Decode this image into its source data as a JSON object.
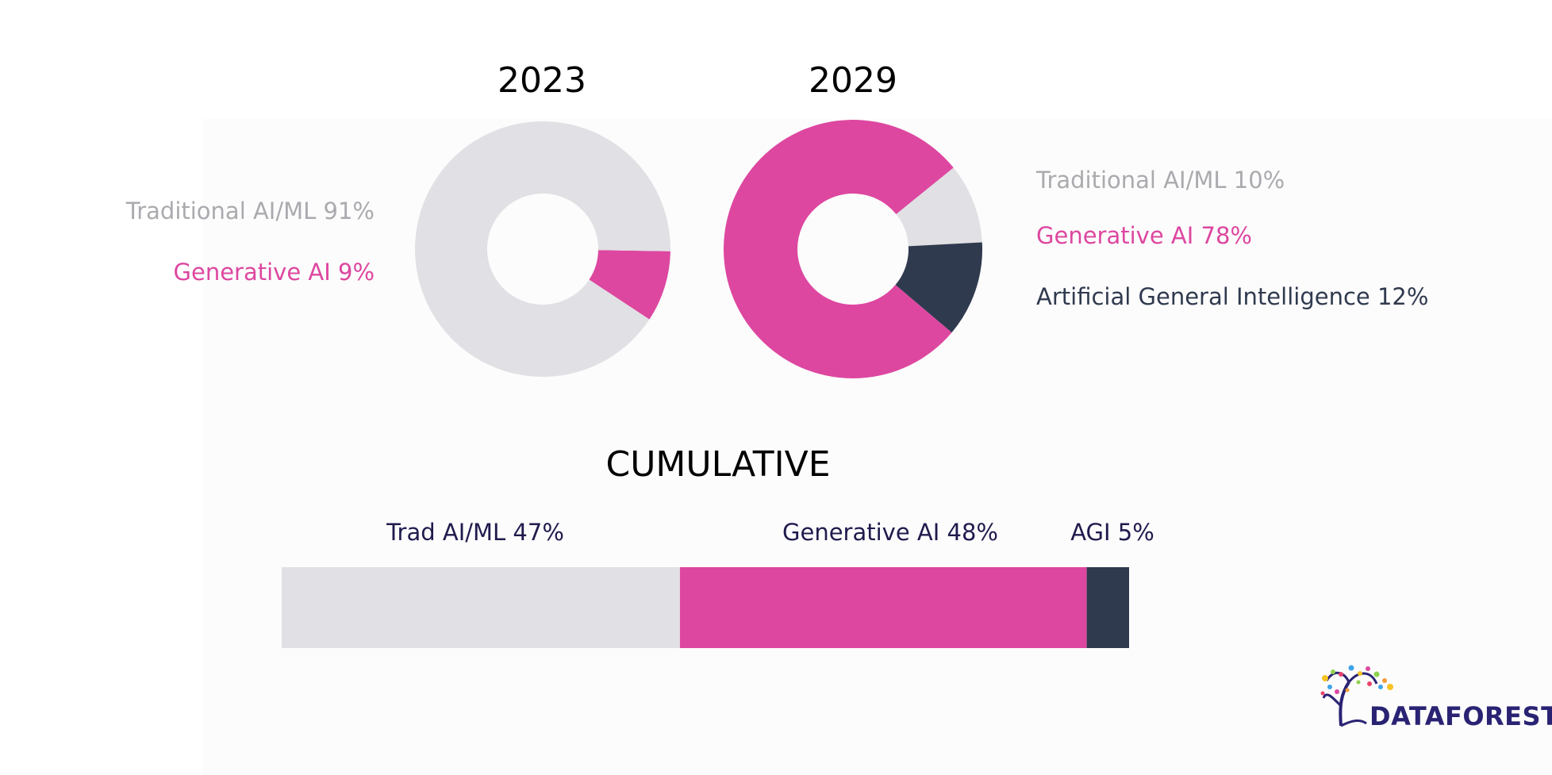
{
  "colors": {
    "traditional": "#e1e0e4",
    "generative": "#dd47a0",
    "agi": "#303a4f",
    "traditional_text": "#aaaaaf",
    "generative_text": "#dd47a0",
    "agi_text": "#303a4f"
  },
  "chart_data": [
    {
      "type": "pie",
      "title": "2023",
      "slices": [
        {
          "label": "Traditional AI/ML 91%",
          "name": "Traditional AI/ML",
          "value": 91,
          "color": "#e1e0e4"
        },
        {
          "label": "Generative AI 9%",
          "name": "Generative AI",
          "value": 9,
          "color": "#dd47a0"
        }
      ]
    },
    {
      "type": "pie",
      "title": "2029",
      "slices": [
        {
          "label": "Traditional AI/ML 10%",
          "name": "Traditional AI/ML",
          "value": 10,
          "color": "#e1e0e4"
        },
        {
          "label": "Generative AI 78%",
          "name": "Generative AI",
          "value": 78,
          "color": "#dd47a0"
        },
        {
          "label": "Artificial General Intelligence 12%",
          "name": "Artificial General Intelligence",
          "value": 12,
          "color": "#303a4f"
        }
      ]
    },
    {
      "type": "bar",
      "title": "CUMULATIVE",
      "orientation": "horizontal-stacked",
      "segments": [
        {
          "label": "Trad AI/ML 47%",
          "value": 47,
          "color": "#e1e0e4"
        },
        {
          "label": "Generative AI 48%",
          "value": 48,
          "color": "#dd47a0"
        },
        {
          "label": "AGI 5%",
          "value": 5,
          "color": "#303a4f"
        }
      ]
    }
  ],
  "logo": {
    "text": "DATAFOREST"
  }
}
